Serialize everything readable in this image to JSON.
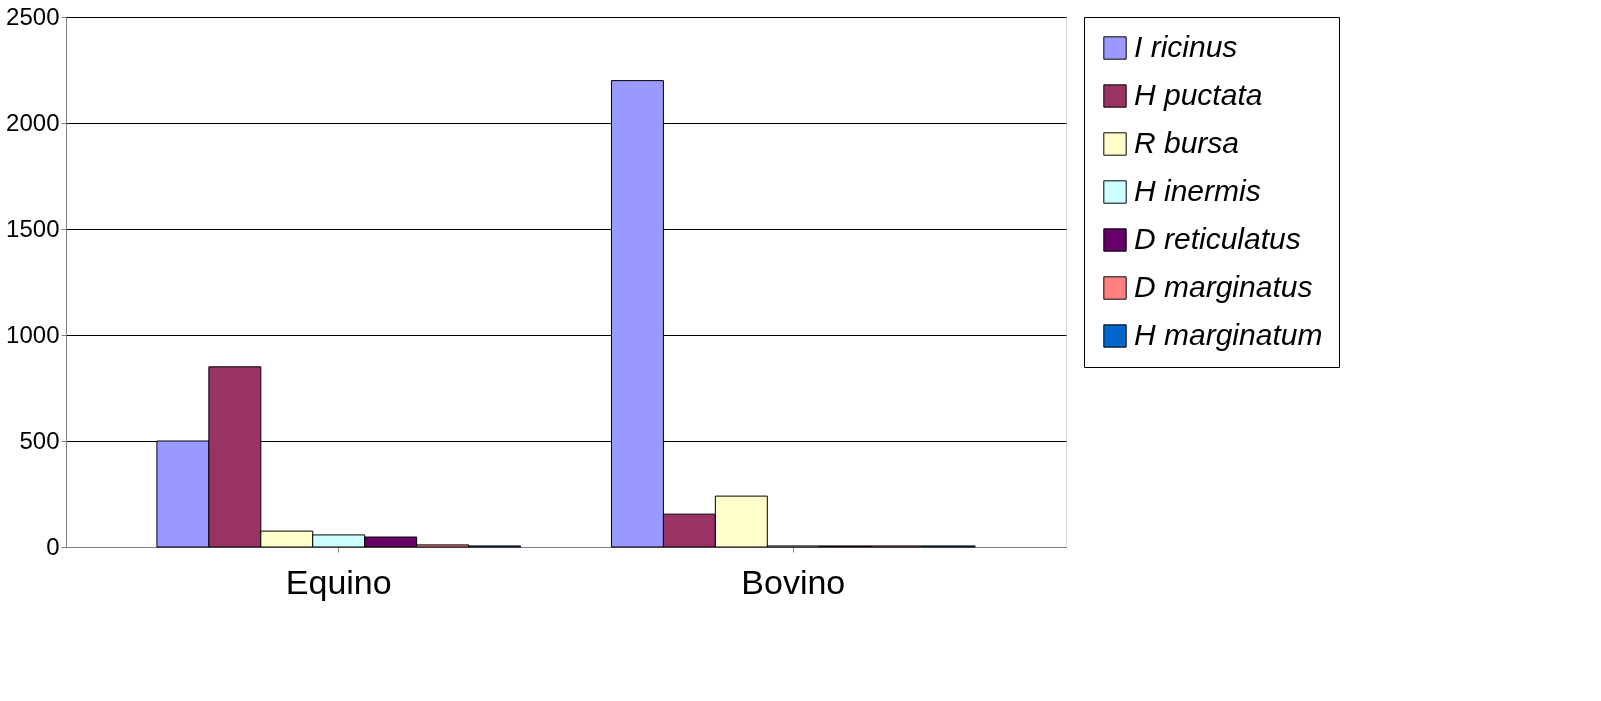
{
  "chart_data": {
    "type": "bar",
    "categories": [
      "Equino",
      "Bovino"
    ],
    "series": [
      {
        "name": "I ricinus",
        "color": "#9999ff",
        "values": [
          500,
          2200
        ]
      },
      {
        "name": "H puctata",
        "color": "#993366",
        "values": [
          850,
          155
        ]
      },
      {
        "name": "R bursa",
        "color": "#ffffcc",
        "values": [
          75,
          240
        ]
      },
      {
        "name": "H inermis",
        "color": "#ccffff",
        "values": [
          57,
          5
        ]
      },
      {
        "name": "D reticulatus",
        "color": "#660066",
        "values": [
          47,
          5
        ]
      },
      {
        "name": "D marginatus",
        "color": "#ff8080",
        "values": [
          10,
          5
        ]
      },
      {
        "name": "H marginatum",
        "color": "#0066cc",
        "values": [
          5,
          5
        ]
      }
    ],
    "ylim": [
      0,
      2500
    ],
    "yticks": [
      0,
      500,
      1000,
      1500,
      2000,
      2500
    ],
    "grid": "y",
    "legend": "right"
  }
}
